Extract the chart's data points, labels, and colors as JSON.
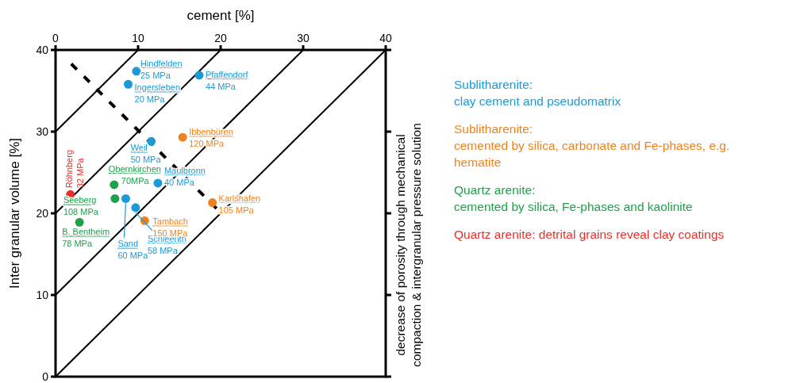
{
  "chart_data": {
    "type": "scatter",
    "xlabel": "cement [%]",
    "ylabel": "Inter granular volume [%]",
    "y2label": "decrease of porosity through mechanical\ncompaction & intergranular pressure solution",
    "xlim": [
      0,
      40
    ],
    "xticks": [
      0,
      10,
      20,
      30,
      40
    ],
    "ylim": [
      0,
      40
    ],
    "yticks": [
      0,
      10,
      20,
      30,
      40
    ],
    "legend": "right",
    "grid": false,
    "series": [
      {
        "type": "line",
        "color": "#000000",
        "line_style": "solid",
        "marker": "none",
        "x": [
          0,
          10
        ],
        "values": [
          30,
          40
        ]
      },
      {
        "type": "line",
        "color": "#000000",
        "line_style": "solid",
        "marker": "none",
        "x": [
          0,
          20
        ],
        "values": [
          20,
          40
        ]
      },
      {
        "type": "line",
        "color": "#000000",
        "line_style": "solid",
        "marker": "none",
        "x": [
          0,
          30
        ],
        "values": [
          10,
          40
        ]
      },
      {
        "type": "line",
        "color": "#000000",
        "line_style": "solid",
        "marker": "none",
        "x": [
          0,
          40
        ],
        "values": [
          0,
          40
        ]
      },
      {
        "type": "line",
        "color": "#000000",
        "line_style": "dashed",
        "marker": "none",
        "x": [
          1.9,
          19.5
        ],
        "values": [
          38.3,
          20.6
        ]
      },
      {
        "name": "Sublitharenite:\nclay cement and pseudomatrix",
        "color": "#1b9ad6",
        "marker": "circle",
        "x": [
          9.8,
          8.8,
          17.4,
          11.6,
          12.4,
          8.5,
          9.7
        ],
        "values": [
          37.4,
          35.8,
          36.9,
          28.8,
          23.7,
          21.8,
          20.7
        ],
        "value_labels": [
          "Hindfelden\n25 MPa",
          "Ingersleben\n20 MPa",
          "Pfaffendorf\n44 MPa",
          "Weil\n50 MPa",
          "Maulbronn\n40 MPa",
          "Sand\n60 MPa",
          "Schleerith\n58 MPa"
        ]
      },
      {
        "name": "Sublitharenite:\ncemented by silica, carbonate and Fe-phases, e.g.\nhematite",
        "color": "#f0821e",
        "marker": "circle",
        "x": [
          15.4,
          19.0,
          10.8
        ],
        "values": [
          29.3,
          21.3,
          19.1
        ],
        "value_labels": [
          "Ibbenbüren\n120 MPa",
          "Karlshafen\n105 MPa",
          "Tambach\n150 MPa"
        ]
      },
      {
        "name": "Quartz arenite:\ncemented by silica, Fe-phases and kaolinite",
        "color": "#1fa04a",
        "marker": "circle",
        "x": [
          7.1,
          7.2,
          2.9
        ],
        "values": [
          23.5,
          21.8,
          18.9
        ],
        "value_labels": [
          "Obernkirchen\n70MPa",
          "Seeberg\n108 MPa",
          "B. Bentheim\n78 MPa"
        ]
      },
      {
        "name": "Quartz arenite: detrital grains reveal clay coatings",
        "color": "#e8302a",
        "marker": "circle",
        "x": [
          1.8
        ],
        "values": [
          22.3
        ],
        "value_labels": [
          "Röhnberg\n32 MPa"
        ]
      }
    ]
  }
}
